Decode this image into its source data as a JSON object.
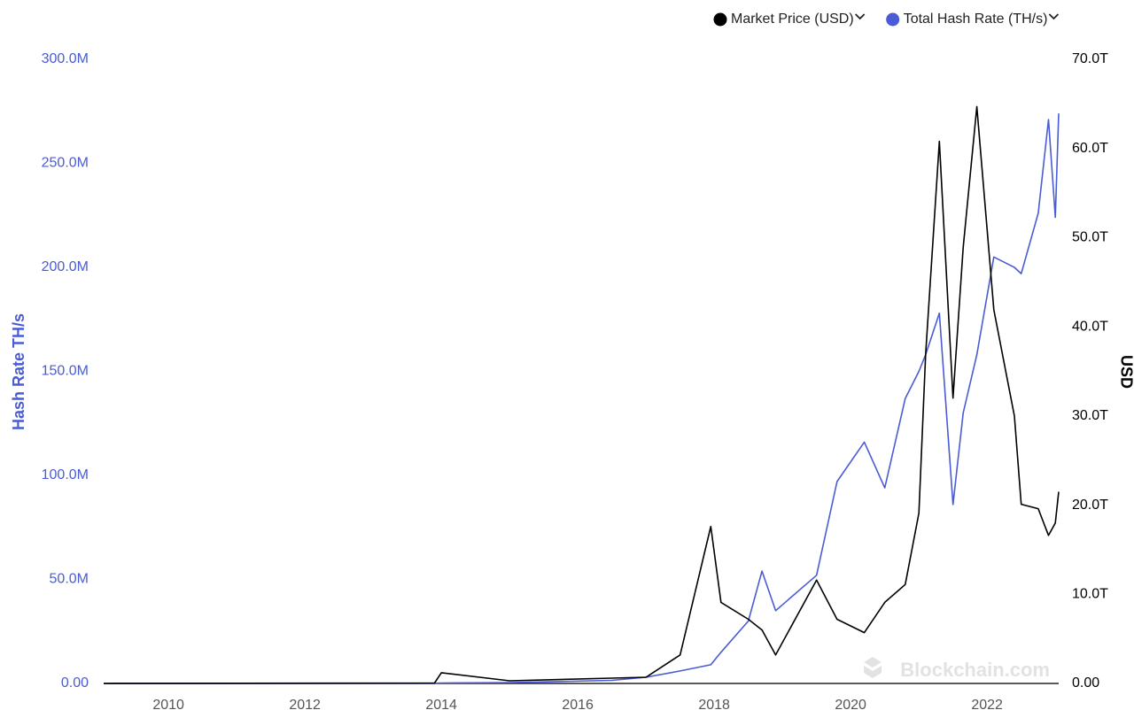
{
  "chart_data": {
    "type": "line",
    "y_label": "Hash Rate TH/s",
    "y2_label": "USD",
    "watermark": "Blockchain.com",
    "x": [
      2009.05,
      2013.9,
      2014,
      2015,
      2016.5,
      2017,
      2017.5,
      2017.95,
      2018.1,
      2018.5,
      2018.7,
      2018.9,
      2019.5,
      2019.8,
      2020.2,
      2020.5,
      2020.8,
      2021,
      2021.1,
      2021.3,
      2021.5,
      2021.65,
      2021.85,
      2022.1,
      2022.4,
      2022.5,
      2022.75,
      2022.9,
      2023,
      2023.05
    ],
    "series": [
      {
        "name": "Market Price (USD)",
        "color": "#000000",
        "axis": "y2",
        "values": [
          0,
          50000000000,
          1200000000000,
          300000000000,
          600000000000,
          700000000000,
          3200000000000,
          17600000000000,
          9100000000000,
          7200000000000,
          6000000000000,
          3200000000000,
          11600000000000,
          7200000000000,
          5700000000000,
          9100000000000,
          11100000000000,
          19100000000000,
          36900000000000,
          60800000000000,
          32000000000000,
          48900000000000,
          64700000000000,
          41900000000000,
          30000000000000,
          20100000000000,
          19600000000000,
          16600000000000,
          18000000000000,
          21500000000000
        ]
      },
      {
        "name": "Total Hash Rate (TH/s)",
        "color": "#4a5bd6",
        "values": [
          0,
          100000,
          200000,
          400000,
          1500000,
          3000000,
          6000000,
          9000000,
          15000000,
          30000000,
          54000000,
          35000000,
          52000000,
          97000000,
          116000000,
          94000000,
          137000000,
          150000000,
          158000000,
          178000000,
          86000000,
          130000000,
          158000000,
          205000000,
          200000000,
          197000000,
          226000000,
          271000000,
          224000000,
          274000000
        ]
      }
    ],
    "xlim": [
      2009.05,
      2023.05
    ],
    "xticks": [
      2010,
      2012,
      2014,
      2016,
      2018,
      2020,
      2022
    ],
    "ylim": [
      0,
      300000000
    ],
    "yticks": [
      {
        "value": 0,
        "label": "0.00"
      },
      {
        "value": 50000000,
        "label": "50.0M"
      },
      {
        "value": 100000000,
        "label": "100.0M"
      },
      {
        "value": 150000000,
        "label": "150.0M"
      },
      {
        "value": 200000000,
        "label": "200.0M"
      },
      {
        "value": 250000000,
        "label": "250.0M"
      },
      {
        "value": 300000000,
        "label": "300.0M"
      }
    ],
    "y2lim": [
      0,
      70000000000000
    ],
    "y2ticks": [
      {
        "value": 0,
        "label": "0.00"
      },
      {
        "value": 10000000000000,
        "label": "10.0T"
      },
      {
        "value": 20000000000000,
        "label": "20.0T"
      },
      {
        "value": 30000000000000,
        "label": "30.0T"
      },
      {
        "value": 40000000000000,
        "label": "40.0T"
      },
      {
        "value": 50000000000000,
        "label": "50.0T"
      },
      {
        "value": 60000000000000,
        "label": "60.0T"
      },
      {
        "value": 70000000000000,
        "label": "70.0T"
      }
    ],
    "grid": false,
    "legend": "top-right"
  }
}
